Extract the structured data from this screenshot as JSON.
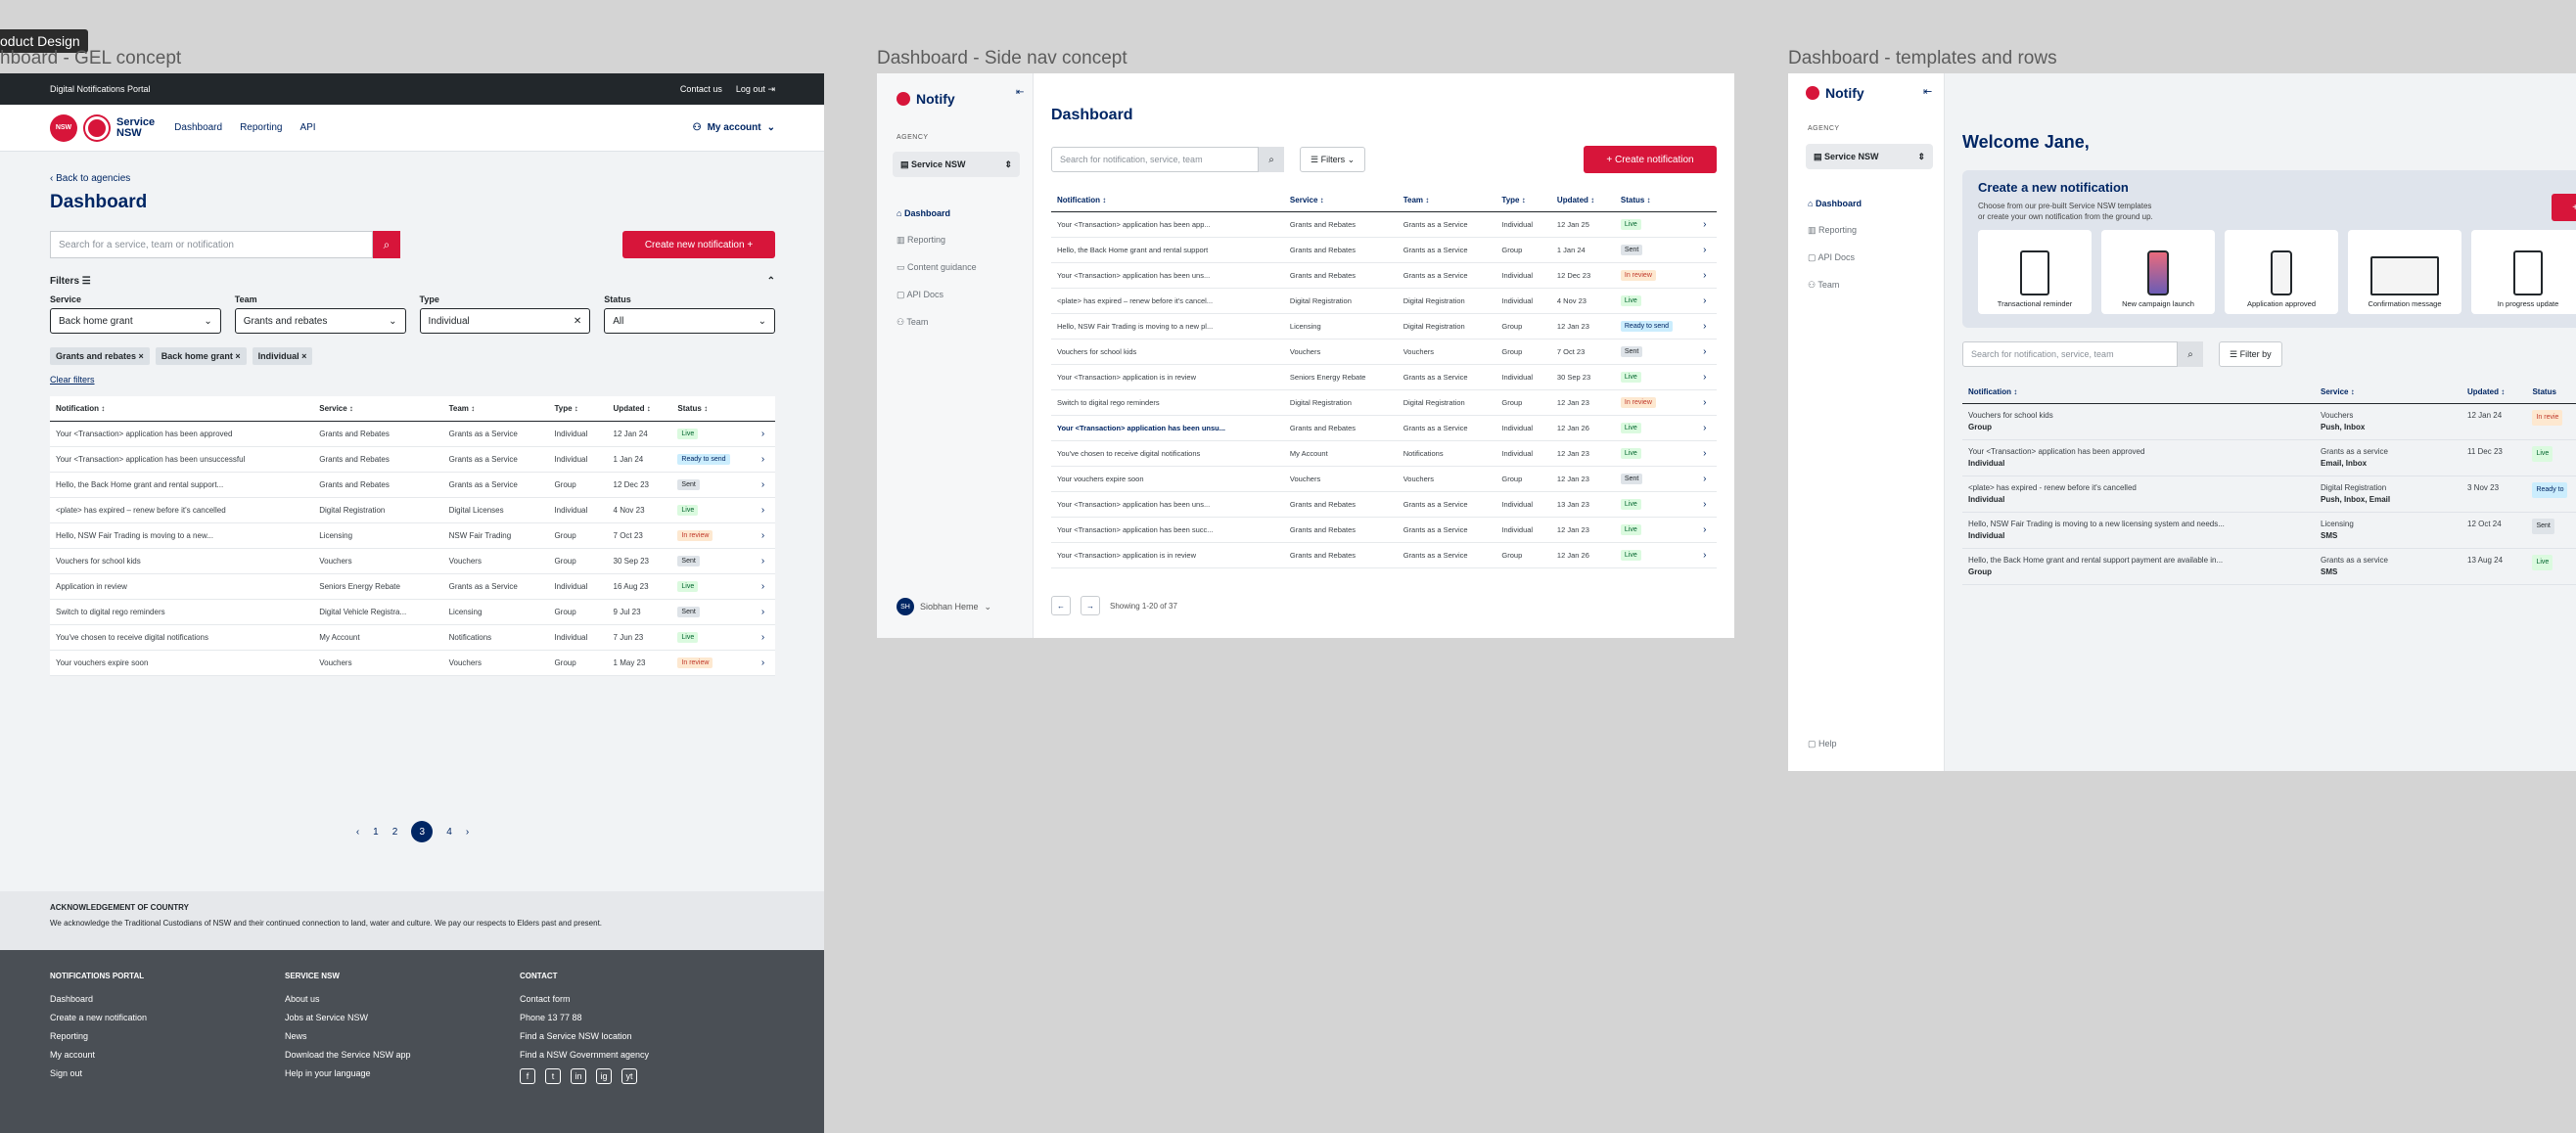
{
  "canvas_label": "oduct Design",
  "frames": {
    "gel_title": "hboard - GEL concept",
    "side_title": "Dashboard - Side nav concept",
    "tpl_title": "Dashboard - templates and rows"
  },
  "f1": {
    "topbar": {
      "portal": "Digital Notifications Portal",
      "contact": "Contact us",
      "logout": "Log out"
    },
    "logo": {
      "nsw": "NSW",
      "service_line1": "Service",
      "service_line2": "NSW"
    },
    "nav": [
      "Dashboard",
      "Reporting",
      "API"
    ],
    "account": "My account",
    "back": "Back to agencies",
    "title": "Dashboard",
    "search_placeholder": "Search for a service, team or notification",
    "create_label": "Create new notification +",
    "filters_label": "Filters",
    "filters": [
      {
        "label": "Service",
        "value": "Back home grant"
      },
      {
        "label": "Team",
        "value": "Grants and rebates"
      },
      {
        "label": "Type",
        "value": "Individual"
      },
      {
        "label": "Status",
        "value": "All"
      }
    ],
    "chips": [
      "Grants and rebates ×",
      "Back home grant ×",
      "Individual ×"
    ],
    "clear": "Clear filters",
    "columns": [
      "Notification ↕",
      "Service ↕",
      "Team ↕",
      "Type ↕",
      "Updated ↕",
      "Status ↕"
    ],
    "rows": [
      [
        "Your <Transaction> application has been approved",
        "Grants and Rebates",
        "Grants as a Service",
        "Individual",
        "12 Jan 24",
        "Live",
        "live"
      ],
      [
        "Your <Transaction> application has been unsuccessful",
        "Grants and Rebates",
        "Grants as a Service",
        "Individual",
        "1 Jan 24",
        "Ready to send",
        "ready"
      ],
      [
        "Hello, the Back Home grant and rental support...",
        "Grants and Rebates",
        "Grants as a Service",
        "Group",
        "12 Dec 23",
        "Sent",
        "sent"
      ],
      [
        "<plate> has expired – renew before it's cancelled",
        "Digital Registration",
        "Digital Licenses",
        "Individual",
        "4 Nov 23",
        "Live",
        "live"
      ],
      [
        "Hello, NSW Fair Trading is moving to a new...",
        "Licensing",
        "NSW Fair Trading",
        "Group",
        "7 Oct 23",
        "In review",
        "review"
      ],
      [
        "Vouchers for school kids",
        "Vouchers",
        "Vouchers",
        "Group",
        "30 Sep 23",
        "Sent",
        "sent"
      ],
      [
        "Application in review",
        "Seniors Energy Rebate",
        "Grants as a Service",
        "Individual",
        "16 Aug 23",
        "Live",
        "live"
      ],
      [
        "Switch to digital rego reminders",
        "Digital Vehicle Registra...",
        "Licensing",
        "Group",
        "9 Jul 23",
        "Sent",
        "sent"
      ],
      [
        "You've chosen to receive digital notifications",
        "My Account",
        "Notifications",
        "Individual",
        "7 Jun 23",
        "Live",
        "live"
      ],
      [
        "Your vouchers expire soon",
        "Vouchers",
        "Vouchers",
        "Group",
        "1 May 23",
        "In review",
        "review"
      ]
    ],
    "pages": [
      "1",
      "2",
      "3",
      "4"
    ],
    "ack_title": "ACKNOWLEDGEMENT OF COUNTRY",
    "ack_text": "We acknowledge the Traditional Custodians of NSW and their continued connection to land, water and culture. We pay our respects to Elders past and present.",
    "footer": [
      {
        "title": "NOTIFICATIONS PORTAL",
        "links": [
          "Dashboard",
          "Create a new notification",
          "Reporting",
          "My account",
          "Sign out"
        ]
      },
      {
        "title": "SERVICE NSW",
        "links": [
          "About us",
          "Jobs at Service NSW",
          "News",
          "Download the Service NSW app",
          "Help in your language"
        ]
      },
      {
        "title": "CONTACT",
        "links": [
          "Contact form",
          "Phone 13 77 88",
          "Find a Service NSW location",
          "Find a NSW Government agency"
        ]
      }
    ],
    "socials": [
      "f",
      "t",
      "in",
      "ig",
      "yt"
    ]
  },
  "f2": {
    "brand": "Notify",
    "agency_label": "AGENCY",
    "agency": "Service NSW",
    "nav": [
      "Dashboard",
      "Reporting",
      "Content guidance",
      "API Docs",
      "Team"
    ],
    "user_initials": "SH",
    "user": "Siobhan Heme",
    "title": "Dashboard",
    "search_placeholder": "Search for notification, service, team",
    "filters": "Filters",
    "create": "+ Create notification",
    "columns": [
      "Notification ↕",
      "Service ↕",
      "Team ↕",
      "Type ↕",
      "Updated ↕",
      "Status ↕"
    ],
    "rows": [
      [
        "Your <Transaction> application has been app...",
        "Grants and Rebates",
        "Grants as a Service",
        "Individual",
        "12 Jan 25",
        "Live",
        "live"
      ],
      [
        "Hello, the Back Home grant and rental support",
        "Grants and Rebates",
        "Grants as a Service",
        "Group",
        "1 Jan 24",
        "Sent",
        "sent"
      ],
      [
        "Your <Transaction> application has been uns...",
        "Grants and Rebates",
        "Grants as a Service",
        "Individual",
        "12 Dec 23",
        "In review",
        "review"
      ],
      [
        "<plate> has expired – renew before it's cancel...",
        "Digital Registration",
        "Digital Registration",
        "Individual",
        "4 Nov 23",
        "Live",
        "live"
      ],
      [
        "Hello, NSW Fair Trading is moving to a new pl...",
        "Licensing",
        "Digital Registration",
        "Group",
        "12 Jan 23",
        "Ready to send",
        "ready"
      ],
      [
        "Vouchers for school kids",
        "Vouchers",
        "Vouchers",
        "Group",
        "7 Oct 23",
        "Sent",
        "sent"
      ],
      [
        "Your <Transaction> application is in review",
        "Seniors Energy Rebate",
        "Grants as a Service",
        "Individual",
        "30 Sep 23",
        "Live",
        "live"
      ],
      [
        "Switch to digital rego reminders",
        "Digital Registration",
        "Digital Registration",
        "Group",
        "12 Jan 23",
        "In review",
        "review"
      ],
      [
        "Your <Transaction> application has been unsu...",
        "Grants and Rebates",
        "Grants as a Service",
        "Individual",
        "12 Jan 26",
        "Live",
        "live"
      ],
      [
        "You've chosen to receive digital notifications",
        "My Account",
        "Notifications",
        "Individual",
        "12 Jan 23",
        "Live",
        "live"
      ],
      [
        "Your vouchers expire soon",
        "Vouchers",
        "Vouchers",
        "Group",
        "12 Jan 23",
        "Sent",
        "sent"
      ],
      [
        "Your <Transaction> application has been uns...",
        "Grants and Rebates",
        "Grants as a Service",
        "Individual",
        "13 Jan 23",
        "Live",
        "live"
      ],
      [
        "Your <Transaction> application has been succ...",
        "Grants and Rebates",
        "Grants as a Service",
        "Individual",
        "12 Jan 23",
        "Live",
        "live"
      ],
      [
        "Your <Transaction> application is in review",
        "Grants and Rebates",
        "Grants as a Service",
        "Group",
        "12 Jan 26",
        "Live",
        "live"
      ]
    ],
    "showing": "Showing 1-20 of 37"
  },
  "f3": {
    "brand": "Notify",
    "agency_label": "AGENCY",
    "agency": "Service NSW",
    "nav": [
      "Dashboard",
      "Reporting",
      "API Docs",
      "Team"
    ],
    "help": "Help",
    "welcome": "Welcome Jane,",
    "panel_title": "Create a new notification",
    "panel_text1": "Choose from our pre-built Service NSW templates",
    "panel_text2": "or create your own notification from the ground up.",
    "create": "+ Create notific",
    "templates": [
      "Transactional reminder",
      "New campaign launch",
      "Application approved",
      "Confirmation message",
      "In progress update"
    ],
    "search_placeholder": "Search for notification, service, team",
    "filter_by": "Filter by",
    "columns": [
      "Notification ↕",
      "Service ↕",
      "Updated ↕",
      "Status"
    ],
    "rows": [
      {
        "n": "Vouchers for school kids",
        "t": "Group",
        "s": "Vouchers",
        "c": "Push, Inbox",
        "u": "12 Jan 24",
        "st": "In revie",
        "k": "review"
      },
      {
        "n": "Your <Transaction> application has been approved",
        "t": "Individual",
        "s": "Grants as a service",
        "c": "Email, Inbox",
        "u": "11 Dec 23",
        "st": "Live",
        "k": "live"
      },
      {
        "n": "<plate> has expired - renew before it's cancelled",
        "t": "Individual",
        "s": "Digital Registration",
        "c": "Push, Inbox, Email",
        "u": "3 Nov 23",
        "st": "Ready to",
        "k": "ready"
      },
      {
        "n": "Hello, NSW Fair Trading is moving to a new licensing system and needs...",
        "t": "Individual",
        "s": "Licensing",
        "c": "SMS",
        "u": "12 Oct 24",
        "st": "Sent",
        "k": "sent"
      },
      {
        "n": "Hello, the Back Home grant and rental support payment are available in...",
        "t": "Group",
        "s": "Grants as a service",
        "c": "SMS",
        "u": "13 Aug 24",
        "st": "Live",
        "k": "live"
      }
    ]
  }
}
